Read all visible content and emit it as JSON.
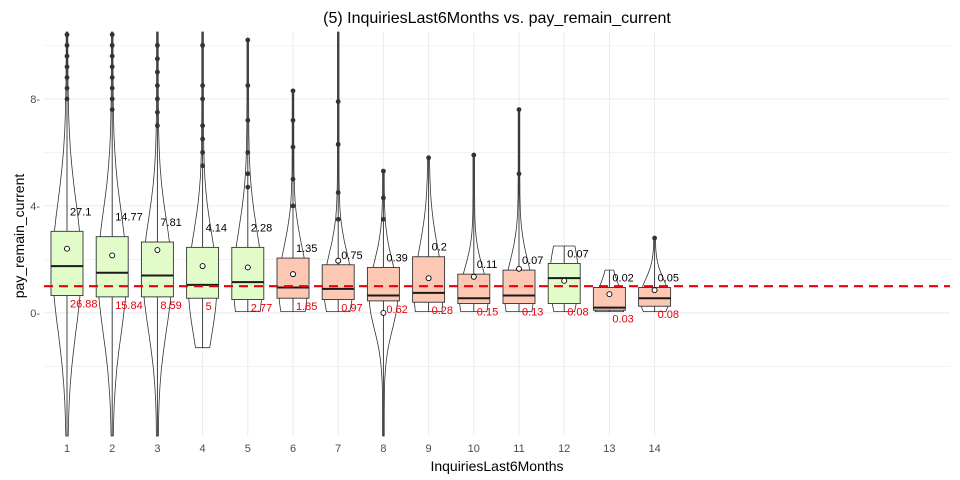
{
  "chart_data": {
    "type": "boxplot",
    "title": "(5) InquiriesLast6Months vs. pay_remain_current",
    "xlabel": "InquiriesLast6Months",
    "ylabel": "pay_remain_current",
    "ylim": [
      -4.6,
      10.5
    ],
    "yticks": [
      0,
      4,
      8
    ],
    "ytick_labels": [
      "0-",
      "4-",
      "8-"
    ],
    "reference_line": 1.0,
    "categories": [
      "1",
      "2",
      "3",
      "4",
      "5",
      "6",
      "7",
      "8",
      "9",
      "10",
      "11",
      "12",
      "13",
      "14"
    ],
    "boxes": [
      {
        "x": "1",
        "q1": 0.65,
        "median": 1.75,
        "q3": 3.05,
        "mean": 2.4,
        "whisker_low": -4.6,
        "whisker_high": 10.5,
        "count_label": "27.1",
        "pct_label": "26.88",
        "fill": "green",
        "outliers": [
          8.0,
          8.4,
          8.8,
          9.2,
          9.6,
          10.0,
          10.4
        ]
      },
      {
        "x": "2",
        "q1": 0.6,
        "median": 1.5,
        "q3": 2.85,
        "mean": 2.15,
        "whisker_low": -4.6,
        "whisker_high": 10.5,
        "count_label": "14.77",
        "pct_label": "15.84",
        "fill": "green",
        "outliers": [
          7.6,
          8.0,
          8.4,
          8.8,
          9.2,
          9.6,
          10.0,
          10.4
        ]
      },
      {
        "x": "3",
        "q1": 0.6,
        "median": 1.4,
        "q3": 2.65,
        "mean": 2.35,
        "whisker_low": -4.6,
        "whisker_high": 10.5,
        "count_label": "7.81",
        "pct_label": "8.59",
        "fill": "green",
        "outliers": [
          7.0,
          7.5,
          8.0,
          8.5,
          9.0,
          9.5,
          10.0
        ]
      },
      {
        "x": "4",
        "q1": 0.55,
        "median": 1.05,
        "q3": 2.45,
        "mean": 1.75,
        "whisker_low": -1.3,
        "whisker_high": 10.5,
        "count_label": "4.14",
        "pct_label": "5",
        "fill": "green",
        "outliers": [
          5.5,
          6.0,
          6.5,
          7.0,
          8.0,
          8.5,
          10.0
        ]
      },
      {
        "x": "5",
        "q1": 0.5,
        "median": 1.15,
        "q3": 2.45,
        "mean": 1.7,
        "whisker_low": 0.05,
        "whisker_high": 10.2,
        "count_label": "2.28",
        "pct_label": "2.77",
        "fill": "green",
        "outliers": [
          4.7,
          5.2,
          6.0,
          7.2,
          8.5,
          10.2
        ]
      },
      {
        "x": "6",
        "q1": 0.55,
        "median": 0.95,
        "q3": 2.05,
        "mean": 1.45,
        "whisker_low": 0.05,
        "whisker_high": 8.3,
        "count_label": "1.35",
        "pct_label": "1.85",
        "fill": "red",
        "outliers": [
          4.0,
          5.0,
          6.2,
          7.2,
          8.3
        ]
      },
      {
        "x": "7",
        "q1": 0.5,
        "median": 0.9,
        "q3": 1.8,
        "mean": 1.95,
        "whisker_low": 0.05,
        "whisker_high": 10.5,
        "count_label": "0.75",
        "pct_label": "0.97",
        "fill": "red",
        "outliers": [
          3.5,
          4.5,
          6.3,
          7.9
        ]
      },
      {
        "x": "8",
        "q1": 0.45,
        "median": 0.65,
        "q3": 1.7,
        "mean": 0.0,
        "whisker_low": -4.6,
        "whisker_high": 5.3,
        "count_label": "0.39",
        "pct_label": "0.62",
        "fill": "red",
        "outliers": [
          3.5,
          4.3,
          5.3
        ]
      },
      {
        "x": "9",
        "q1": 0.4,
        "median": 0.75,
        "q3": 2.1,
        "mean": 1.3,
        "whisker_low": 0.05,
        "whisker_high": 5.8,
        "count_label": "0.2",
        "pct_label": "0.28",
        "fill": "red",
        "outliers": [
          5.8
        ]
      },
      {
        "x": "10",
        "q1": 0.35,
        "median": 0.55,
        "q3": 1.45,
        "mean": 1.35,
        "whisker_low": 0.05,
        "whisker_high": 5.9,
        "count_label": "0.11",
        "pct_label": "0.15",
        "fill": "red",
        "outliers": [
          5.9
        ]
      },
      {
        "x": "11",
        "q1": 0.35,
        "median": 0.65,
        "q3": 1.6,
        "mean": 1.65,
        "whisker_low": 0.05,
        "whisker_high": 7.6,
        "count_label": "0.07",
        "pct_label": "0.13",
        "fill": "red",
        "outliers": [
          5.2,
          7.6
        ]
      },
      {
        "x": "12",
        "q1": 0.35,
        "median": 1.3,
        "q3": 1.85,
        "mean": 1.2,
        "whisker_low": 0.05,
        "whisker_high": 2.5,
        "count_label": "0.07",
        "pct_label": "0.08",
        "fill": "green",
        "outliers": []
      },
      {
        "x": "13",
        "q1": 0.1,
        "median": 0.2,
        "q3": 0.95,
        "mean": 0.7,
        "whisker_low": 0.05,
        "whisker_high": 1.6,
        "count_label": "0.02",
        "pct_label": "0.03",
        "fill": "red",
        "outliers": []
      },
      {
        "x": "14",
        "q1": 0.25,
        "median": 0.55,
        "q3": 0.95,
        "mean": 0.85,
        "whisker_low": 0.05,
        "whisker_high": 2.8,
        "count_label": "0.05",
        "pct_label": "0.08",
        "fill": "red",
        "outliers": [
          2.8
        ]
      }
    ],
    "grid": true,
    "colors": {
      "box_green": "#e1fcc8",
      "box_red": "#fcc8b4",
      "median_line": "#1a1a1a",
      "reference_line": "#e8000b",
      "grid": "#ebebeb",
      "pct_text": "#e8000b"
    }
  }
}
